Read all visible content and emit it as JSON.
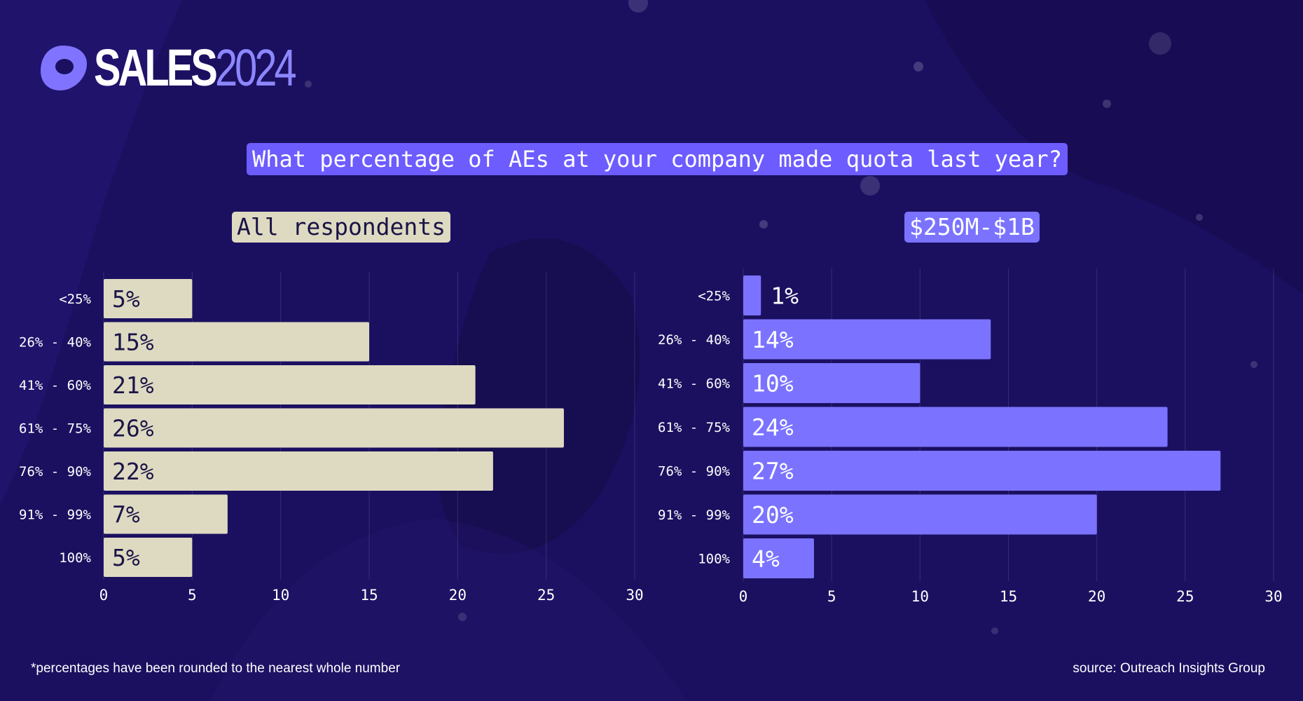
{
  "brand": {
    "sales": "SALES",
    "year": "2024"
  },
  "question": "What percentage of AEs at your company made quota last year?",
  "footnote": "*percentages have been rounded to the nearest whole number",
  "source": "source: Outreach Insights Group",
  "colors": {
    "background": "#1b1060",
    "left_bar": "#dedac2",
    "right_bar": "#7b73ff",
    "question_bg": "#6d5cff",
    "brand_accent": "#8d87ff"
  },
  "chart_data": [
    {
      "type": "bar",
      "orientation": "horizontal",
      "title": "All respondents",
      "categories": [
        "<25%",
        "26% - 40%",
        "41% - 60%",
        "61% - 75%",
        "76% - 90%",
        "91% - 99%",
        "100%"
      ],
      "values": [
        5,
        15,
        21,
        26,
        22,
        7,
        5
      ],
      "labels": [
        "5%",
        "15%",
        "21%",
        "26%",
        "22%",
        "7%",
        "5%"
      ],
      "xlim": [
        0,
        30
      ],
      "xticks": [
        0,
        5,
        10,
        15,
        20,
        25,
        30
      ],
      "grid": true
    },
    {
      "type": "bar",
      "orientation": "horizontal",
      "title": "$250M-$1B",
      "categories": [
        "<25%",
        "26% - 40%",
        "41% - 60%",
        "61% - 75%",
        "76% - 90%",
        "91% - 99%",
        "100%"
      ],
      "values": [
        1,
        14,
        10,
        24,
        27,
        20,
        4
      ],
      "labels": [
        "1%",
        "14%",
        "10%",
        "24%",
        "27%",
        "20%",
        "4%"
      ],
      "xlim": [
        0,
        30
      ],
      "xticks": [
        0,
        5,
        10,
        15,
        20,
        25,
        30
      ],
      "grid": true
    }
  ]
}
